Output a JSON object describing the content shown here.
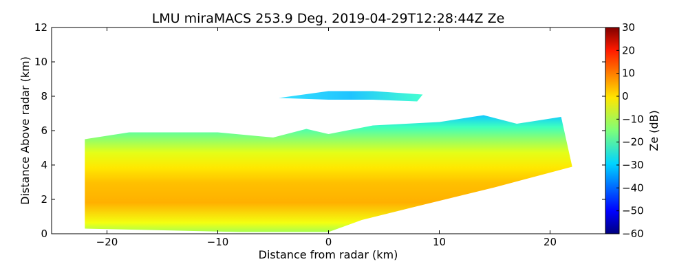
{
  "chart_data": {
    "type": "heatmap",
    "title": "LMU miraMACS 253.9 Deg. 2019-04-29T12:28:44Z  Ze",
    "xlabel": "Distance from radar (km)",
    "ylabel": "Distance Above radar  (km)",
    "xlim": [
      -25,
      25
    ],
    "ylim": [
      0,
      12
    ],
    "xticks": [
      -20,
      -10,
      0,
      10,
      20
    ],
    "xtick_labels": [
      "−20",
      "−10",
      "0",
      "10",
      "20"
    ],
    "yticks": [
      0,
      2,
      4,
      6,
      8,
      10,
      12
    ],
    "ytick_labels": [
      "0",
      "2",
      "4",
      "6",
      "8",
      "10",
      "12"
    ],
    "colorbar": {
      "label": "Ze (dB)",
      "range": [
        -60,
        30
      ],
      "ticks": [
        -60,
        -50,
        -40,
        -30,
        -20,
        -10,
        0,
        10,
        20,
        30
      ],
      "tick_labels": [
        "−60",
        "−50",
        "−40",
        "−30",
        "−20",
        "−10",
        "0",
        "10",
        "20",
        "30"
      ],
      "colormap": "jet"
    },
    "echo_regions": [
      {
        "name": "main precipitation echo",
        "outline_km": [
          [
            -22,
            0.3
          ],
          [
            -22,
            5.5
          ],
          [
            -18,
            5.9
          ],
          [
            -10,
            5.9
          ],
          [
            -5,
            5.6
          ],
          [
            -2,
            6.1
          ],
          [
            0,
            5.8
          ],
          [
            4,
            6.3
          ],
          [
            10,
            6.5
          ],
          [
            14,
            6.9
          ],
          [
            17,
            6.4
          ],
          [
            21,
            6.8
          ],
          [
            22,
            3.9
          ],
          [
            15,
            2.7
          ],
          [
            8,
            1.6
          ],
          [
            3,
            0.8
          ],
          [
            0,
            0.1
          ],
          [
            -8,
            0.1
          ],
          [
            -22,
            0.3
          ]
        ],
        "typical_ze_db": 5,
        "max_ze_db": 12,
        "min_ze_db": -28
      },
      {
        "name": "upper cloud layer",
        "outline_km": [
          [
            -4.5,
            7.9
          ],
          [
            0,
            8.3
          ],
          [
            4,
            8.3
          ],
          [
            8.5,
            8.1
          ],
          [
            8,
            7.7
          ],
          [
            4,
            7.8
          ],
          [
            0,
            7.8
          ],
          [
            -4.5,
            7.9
          ]
        ],
        "typical_ze_db": -27,
        "max_ze_db": -18,
        "min_ze_db": -33
      }
    ],
    "ze_profile_by_height": [
      {
        "height_km": 0.5,
        "ze_db": -5
      },
      {
        "height_km": 1.5,
        "ze_db": 7
      },
      {
        "height_km": 2.5,
        "ze_db": 10
      },
      {
        "height_km": 3.5,
        "ze_db": 3
      },
      {
        "height_km": 4.5,
        "ze_db": -3
      },
      {
        "height_km": 5.5,
        "ze_db": -13
      },
      {
        "height_km": 6.0,
        "ze_db": -25
      },
      {
        "height_km": 8.1,
        "ze_db": -27
      }
    ]
  }
}
